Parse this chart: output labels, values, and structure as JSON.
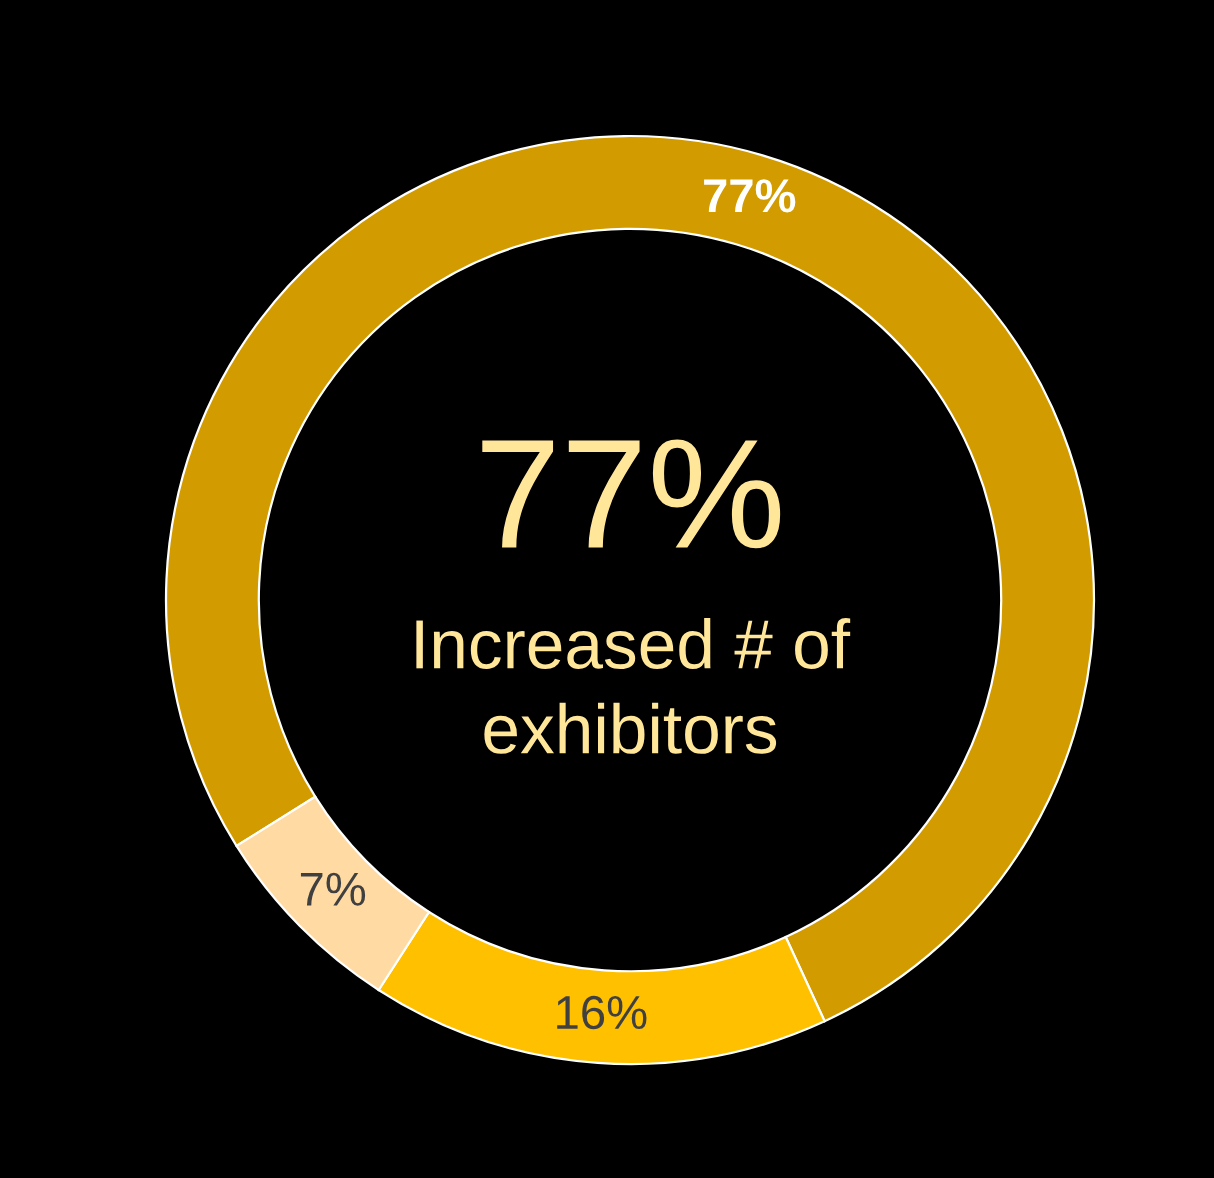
{
  "chart_data": {
    "type": "donut",
    "categories": [
      null,
      null,
      null
    ],
    "values": [
      77,
      16,
      7
    ],
    "colors": [
      "#d29c00",
      "#ffc000",
      "#ffdba3"
    ],
    "value_labels": [
      "77%",
      "16%",
      "7%"
    ],
    "annotations": [
      "77%",
      "Increased # of exhibitors"
    ]
  }
}
